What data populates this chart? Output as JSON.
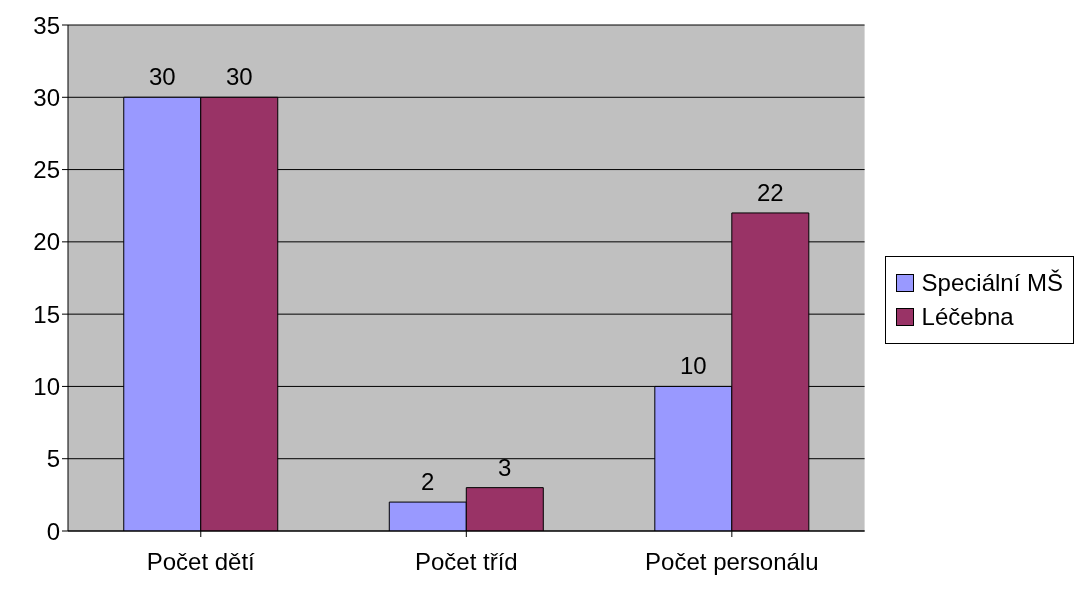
{
  "chart_data": {
    "type": "bar",
    "categories": [
      "Počet dětí",
      "Počet tříd",
      "Počet personálu"
    ],
    "series": [
      {
        "name": "Speciální MŠ",
        "color": "#9999ff",
        "values": [
          30,
          2,
          10
        ]
      },
      {
        "name": "Léčebna",
        "color": "#993366",
        "values": [
          30,
          3,
          22
        ]
      }
    ],
    "ylim": [
      0,
      35
    ],
    "yticks": [
      0,
      5,
      10,
      15,
      20,
      25,
      30,
      35
    ],
    "grid": "y",
    "legend": "right",
    "data_labels": true
  }
}
